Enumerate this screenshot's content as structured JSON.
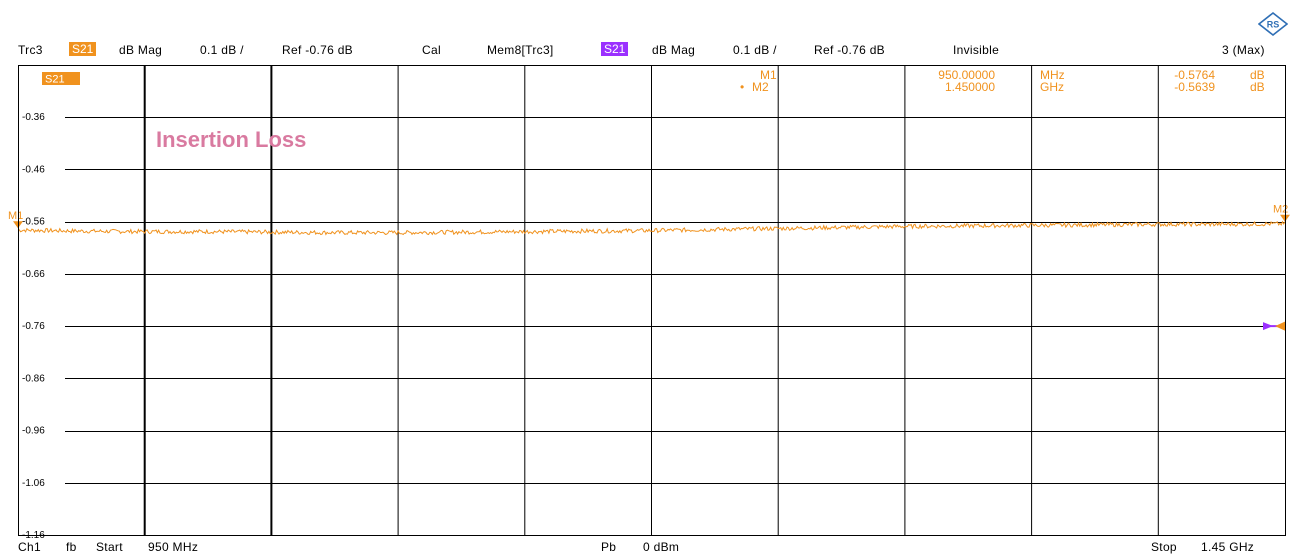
{
  "header": {
    "trace_label": "Trc3",
    "trace_param": "S21",
    "trace_format": "dB Mag",
    "trace_scale": "0.1 dB /",
    "trace_ref": "Ref -0.76 dB",
    "trace_cal": "Cal",
    "mem_label": "Mem8[Trc3]",
    "mem_param": "S21",
    "mem_format": "dB Mag",
    "mem_scale": "0.1 dB /",
    "mem_ref": "Ref -0.76 dB",
    "mem_state": "Invisible",
    "channel_count": "3 (Max)"
  },
  "plot": {
    "trace_tag": "S21",
    "annotation": "Insertion Loss"
  },
  "markers": [
    {
      "name": "M1",
      "stimulus": "950.00000",
      "unit": "MHz",
      "value": "-0.5764",
      "value_unit": "dB"
    },
    {
      "name": "M2",
      "stimulus": "1.450000",
      "unit": "GHz",
      "value": "-0.5639",
      "value_unit": "dB",
      "prefix": "•"
    }
  ],
  "footer": {
    "channel": "Ch1",
    "mode": "fb",
    "start_label": "Start",
    "start_value": "950 MHz",
    "power_label": "Pb",
    "power_value": "0 dBm",
    "stop_label": "Stop",
    "stop_value": "1.45 GHz"
  },
  "colors": {
    "trace": "#f0921e",
    "memory": "#9b30ff",
    "annotation": "#d97aa0",
    "grid": "#000000"
  },
  "chart_data": {
    "type": "line",
    "title": "Insertion Loss",
    "xlabel": "",
    "ylabel": "",
    "x_unit": "MHz",
    "xlim": [
      950,
      1450
    ],
    "ylim": [
      -1.16,
      -0.26
    ],
    "y_ticks": [
      -0.36,
      -0.46,
      -0.56,
      -0.66,
      -0.76,
      -0.86,
      -0.96,
      -1.06,
      -1.16
    ],
    "y_tick_labels": [
      "-0.36",
      "-0.46",
      "-0.56",
      "-0.66",
      "-0.76",
      "-0.86",
      "-0.96",
      "-1.06",
      "-1.16"
    ],
    "grid": true,
    "reference_level": -0.76,
    "series": [
      {
        "name": "S21",
        "x": [
          950,
          975,
          1000,
          1025,
          1050,
          1075,
          1100,
          1125,
          1150,
          1175,
          1200,
          1225,
          1250,
          1275,
          1300,
          1325,
          1350,
          1375,
          1400,
          1425,
          1450
        ],
        "values": [
          -0.576,
          -0.578,
          -0.579,
          -0.579,
          -0.58,
          -0.581,
          -0.581,
          -0.58,
          -0.579,
          -0.578,
          -0.577,
          -0.575,
          -0.573,
          -0.571,
          -0.569,
          -0.568,
          -0.567,
          -0.566,
          -0.565,
          -0.565,
          -0.564
        ]
      }
    ],
    "markers": [
      {
        "name": "M1",
        "x": 950,
        "y": -0.5764
      },
      {
        "name": "M2",
        "x": 1450,
        "y": -0.5639
      }
    ]
  }
}
